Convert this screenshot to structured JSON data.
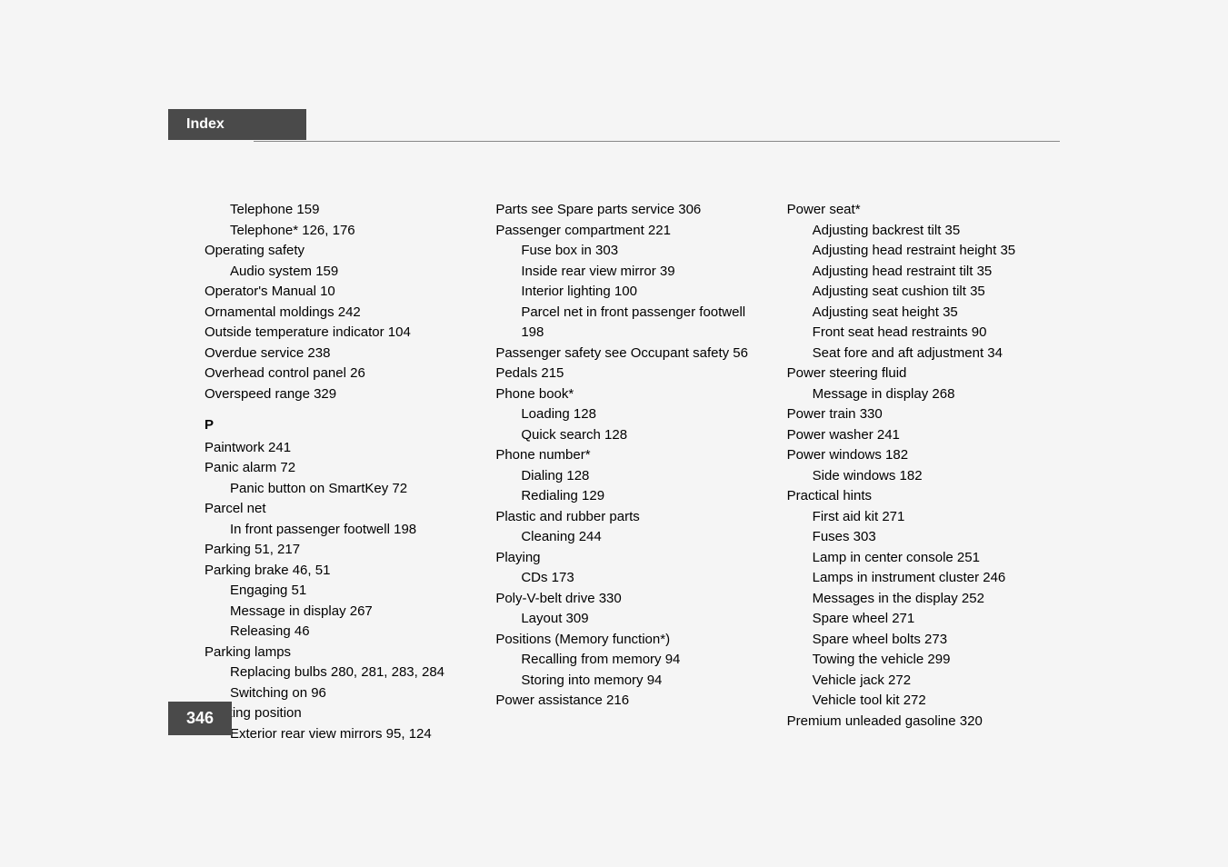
{
  "header": {
    "title": "Index"
  },
  "page_number": "346",
  "columns": {
    "col1": {
      "entries": [
        {
          "text": "Telephone 159",
          "indent": 1
        },
        {
          "text": "Telephone* 126, 176",
          "indent": 1
        },
        {
          "text": "Operating safety",
          "indent": 0
        },
        {
          "text": "Audio system 159",
          "indent": 1
        },
        {
          "text": "Operator's Manual 10",
          "indent": 0
        },
        {
          "text": "Ornamental moldings 242",
          "indent": 0
        },
        {
          "text": "Outside temperature indicator 104",
          "indent": 0
        },
        {
          "text": "Overdue service 238",
          "indent": 0
        },
        {
          "text": "Overhead control panel 26",
          "indent": 0
        },
        {
          "text": "Overspeed range 329",
          "indent": 0
        }
      ],
      "section_letter": "P",
      "p_entries": [
        {
          "text": "Paintwork 241",
          "indent": 0
        },
        {
          "text": "Panic alarm 72",
          "indent": 0
        },
        {
          "text": "Panic button on SmartKey 72",
          "indent": 1
        },
        {
          "text": "Parcel net",
          "indent": 0
        },
        {
          "text": "In front passenger footwell 198",
          "indent": 1
        },
        {
          "text": "Parking 51, 217",
          "indent": 0
        },
        {
          "text": "Parking brake 46, 51",
          "indent": 0
        },
        {
          "text": "Engaging 51",
          "indent": 1
        },
        {
          "text": "Message in display 267",
          "indent": 1
        },
        {
          "text": "Releasing 46",
          "indent": 1
        },
        {
          "text": "Parking lamps",
          "indent": 0
        },
        {
          "text": "Replacing bulbs 280, 281, 283, 284",
          "indent": 1
        },
        {
          "text": "Switching on 96",
          "indent": 1
        },
        {
          "text": "Parking position",
          "indent": 0
        },
        {
          "text": "Exterior rear view mirrors 95, 124",
          "indent": 1
        }
      ]
    },
    "col2": {
      "entries": [
        {
          "text": "Parts see Spare parts service 306",
          "indent": 0
        },
        {
          "text": "Passenger compartment 221",
          "indent": 0
        },
        {
          "text": "Fuse box in 303",
          "indent": 1
        },
        {
          "text": "Inside rear view mirror 39",
          "indent": 1
        },
        {
          "text": "Interior lighting 100",
          "indent": 1
        },
        {
          "text": "Parcel net in front passenger footwell 198",
          "indent": 1
        },
        {
          "text": "Passenger safety see Occupant safety 56",
          "indent": 0
        },
        {
          "text": "Pedals 215",
          "indent": 0
        },
        {
          "text": "Phone book*",
          "indent": 0
        },
        {
          "text": "Loading 128",
          "indent": 1
        },
        {
          "text": "Quick search 128",
          "indent": 1
        },
        {
          "text": "Phone number*",
          "indent": 0
        },
        {
          "text": "Dialing 128",
          "indent": 1
        },
        {
          "text": "Redialing 129",
          "indent": 1
        },
        {
          "text": "Plastic and rubber parts",
          "indent": 0
        },
        {
          "text": "Cleaning 244",
          "indent": 1
        },
        {
          "text": "Playing",
          "indent": 0
        },
        {
          "text": "CDs 173",
          "indent": 1
        },
        {
          "text": "Poly-V-belt drive 330",
          "indent": 0
        },
        {
          "text": "Layout 309",
          "indent": 1
        },
        {
          "text": "Positions (Memory function*)",
          "indent": 0
        },
        {
          "text": "Recalling from memory 94",
          "indent": 1
        },
        {
          "text": "Storing into memory 94",
          "indent": 1
        },
        {
          "text": "Power assistance 216",
          "indent": 0
        }
      ]
    },
    "col3": {
      "entries": [
        {
          "text": "Power seat*",
          "indent": 0
        },
        {
          "text": "Adjusting backrest tilt 35",
          "indent": 1
        },
        {
          "text": "Adjusting head restraint height 35",
          "indent": 1
        },
        {
          "text": "Adjusting head restraint tilt 35",
          "indent": 1
        },
        {
          "text": "Adjusting seat cushion tilt 35",
          "indent": 1
        },
        {
          "text": "Adjusting seat height 35",
          "indent": 1
        },
        {
          "text": "Front seat head restraints 90",
          "indent": 1
        },
        {
          "text": "Seat fore and aft adjustment 34",
          "indent": 1
        },
        {
          "text": "Power steering fluid",
          "indent": 0
        },
        {
          "text": "Message in display 268",
          "indent": 1
        },
        {
          "text": "Power train 330",
          "indent": 0
        },
        {
          "text": "Power washer 241",
          "indent": 0
        },
        {
          "text": "Power windows 182",
          "indent": 0
        },
        {
          "text": "Side windows 182",
          "indent": 1
        },
        {
          "text": "Practical hints",
          "indent": 0
        },
        {
          "text": "First aid kit 271",
          "indent": 1
        },
        {
          "text": "Fuses 303",
          "indent": 1
        },
        {
          "text": "Lamp in center console 251",
          "indent": 1
        },
        {
          "text": "Lamps in instrument cluster 246",
          "indent": 1
        },
        {
          "text": "Messages in the display 252",
          "indent": 1
        },
        {
          "text": "Spare wheel 271",
          "indent": 1
        },
        {
          "text": "Spare wheel bolts 273",
          "indent": 1
        },
        {
          "text": "Towing the vehicle 299",
          "indent": 1
        },
        {
          "text": "Vehicle jack 272",
          "indent": 1
        },
        {
          "text": "Vehicle tool kit 272",
          "indent": 1
        },
        {
          "text": "Premium unleaded gasoline 320",
          "indent": 0
        }
      ]
    }
  }
}
